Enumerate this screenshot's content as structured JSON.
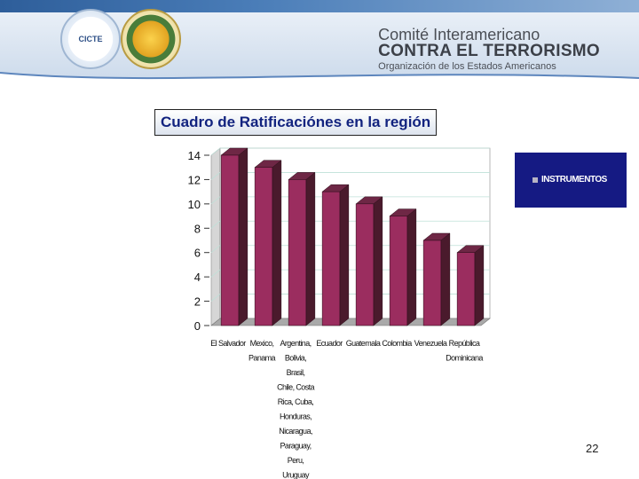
{
  "header": {
    "line1": "Comité Interamericano",
    "line2": "CONTRA EL TERRORISMO",
    "line3": "Organización de los Estados Americanos",
    "logo_text": "CICTE",
    "brand_color": "#2e5e9a"
  },
  "page_number": "22",
  "chart_data": {
    "type": "bar",
    "title": "Cuadro de Ratificaciónes en la región",
    "categories": [
      [
        "El Salvador"
      ],
      [
        "Mexico,",
        "Panama"
      ],
      [
        "Argentina,",
        "Bolivia,",
        "Brasil,",
        "Chile, Costa",
        "Rica, Cuba,",
        "Honduras,",
        "Nicaragua,",
        "Paraguay,",
        "Peru,",
        "Uruguay"
      ],
      [
        "Ecuador"
      ],
      [
        "Guatemala"
      ],
      [
        "Colombia"
      ],
      [
        "Venezuela"
      ],
      [
        "República",
        "Dominicana"
      ]
    ],
    "series": [
      {
        "name": "INSTRUMENTOS",
        "values": [
          14,
          13,
          12,
          11,
          10,
          9,
          7,
          6
        ]
      }
    ],
    "ylim": [
      0,
      14
    ],
    "yticks": [
      "0",
      "2",
      "4",
      "6",
      "8",
      "10",
      "12",
      "14"
    ],
    "grid": true,
    "legend": "right",
    "bar_color": "#9b2d5f",
    "bar_dark": "#4a1a2c",
    "bar_top": "#6e2745",
    "legend_bg": "#151a83"
  }
}
